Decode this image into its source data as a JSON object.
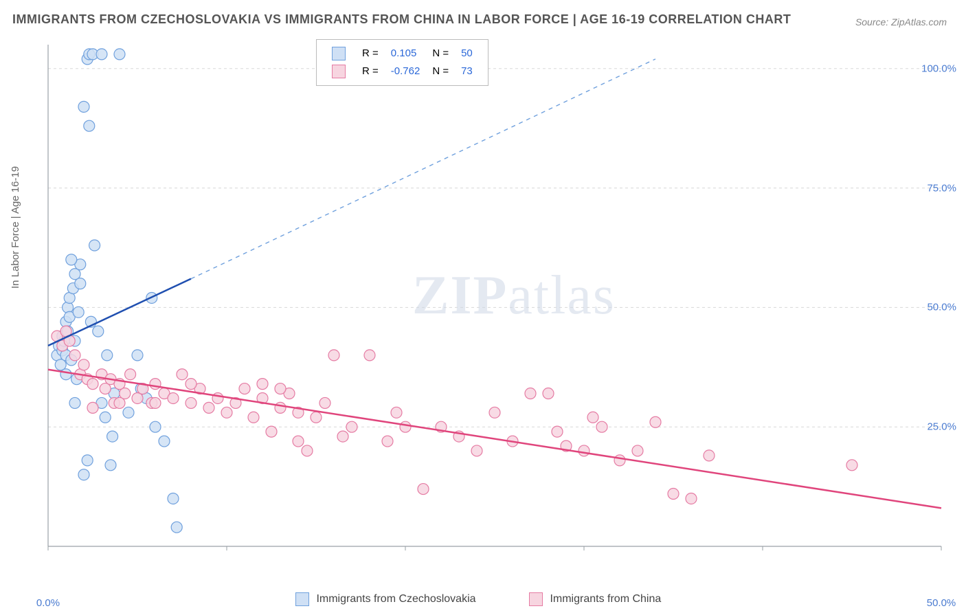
{
  "title": "IMMIGRANTS FROM CZECHOSLOVAKIA VS IMMIGRANTS FROM CHINA IN LABOR FORCE | AGE 16-19 CORRELATION CHART",
  "source": "Source: ZipAtlas.com",
  "ylabel": "In Labor Force | Age 16-19",
  "watermark": "ZIPatlas",
  "chart": {
    "type": "scatter-with-regression",
    "background_color": "#ffffff",
    "grid_color": "#d8d8d8",
    "axis_color": "#9aa0a6",
    "label_fontsize": 15,
    "title_fontsize": 18,
    "xlim": [
      0,
      50
    ],
    "ylim": [
      0,
      105
    ],
    "xticks": [
      0,
      10,
      20,
      30,
      40,
      50
    ],
    "yticks": [
      25,
      50,
      75,
      100
    ],
    "xtick_labels": [
      "0.0%",
      "",
      "",
      "",
      "",
      "50.0%"
    ],
    "ytick_labels": [
      "25.0%",
      "50.0%",
      "75.0%",
      "100.0%"
    ],
    "marker_radius": 8,
    "marker_stroke_width": 1.2,
    "series": [
      {
        "name": "Immigrants from Czechoslovakia",
        "color_fill": "#cfe0f5",
        "color_stroke": "#6fa0dd",
        "r_value": "0.105",
        "n_value": "50",
        "reg_line": {
          "x1": 0,
          "y1": 42,
          "x2": 8,
          "y2": 56,
          "solid_color": "#1f4fb0",
          "solid_width": 2.5
        },
        "reg_ext": {
          "x1": 8,
          "y1": 56,
          "x2": 34,
          "y2": 102,
          "dash_color": "#6fa0dd",
          "dash_width": 1.4
        },
        "points": [
          [
            0.5,
            40
          ],
          [
            0.6,
            42
          ],
          [
            0.7,
            38
          ],
          [
            0.8,
            41
          ],
          [
            0.8,
            44
          ],
          [
            0.9,
            43
          ],
          [
            1.0,
            40
          ],
          [
            1.0,
            47
          ],
          [
            1.0,
            36
          ],
          [
            1.1,
            45
          ],
          [
            1.1,
            50
          ],
          [
            1.2,
            48
          ],
          [
            1.2,
            52
          ],
          [
            1.3,
            39
          ],
          [
            1.4,
            54
          ],
          [
            1.5,
            57
          ],
          [
            1.5,
            43
          ],
          [
            1.6,
            35
          ],
          [
            1.8,
            55
          ],
          [
            1.8,
            59
          ],
          [
            2.0,
            92
          ],
          [
            2.2,
            102
          ],
          [
            2.3,
            88
          ],
          [
            2.3,
            103
          ],
          [
            2.5,
            103
          ],
          [
            2.6,
            63
          ],
          [
            2.8,
            45
          ],
          [
            3.0,
            30
          ],
          [
            3.0,
            103
          ],
          [
            3.2,
            27
          ],
          [
            3.5,
            17
          ],
          [
            3.6,
            23
          ],
          [
            3.7,
            32
          ],
          [
            4.0,
            103
          ],
          [
            4.5,
            28
          ],
          [
            5.0,
            40
          ],
          [
            5.2,
            33
          ],
          [
            5.5,
            31
          ],
          [
            5.8,
            52
          ],
          [
            6.0,
            25
          ],
          [
            6.5,
            22
          ],
          [
            7.0,
            10
          ],
          [
            7.2,
            4
          ],
          [
            2.0,
            15
          ],
          [
            2.2,
            18
          ],
          [
            1.5,
            30
          ],
          [
            1.3,
            60
          ],
          [
            1.7,
            49
          ],
          [
            2.4,
            47
          ],
          [
            3.3,
            40
          ]
        ]
      },
      {
        "name": "Immigrants from China",
        "color_fill": "#f7d5e0",
        "color_stroke": "#e57ba3",
        "r_value": "-0.762",
        "n_value": "73",
        "reg_line": {
          "x1": 0,
          "y1": 37,
          "x2": 50,
          "y2": 8,
          "solid_color": "#e0457c",
          "solid_width": 2.5
        },
        "points": [
          [
            0.5,
            44
          ],
          [
            0.8,
            42
          ],
          [
            1.0,
            45
          ],
          [
            1.2,
            43
          ],
          [
            1.5,
            40
          ],
          [
            1.8,
            36
          ],
          [
            2.0,
            38
          ],
          [
            2.2,
            35
          ],
          [
            2.5,
            34
          ],
          [
            3.0,
            36
          ],
          [
            3.2,
            33
          ],
          [
            3.5,
            35
          ],
          [
            3.7,
            30
          ],
          [
            4.0,
            34
          ],
          [
            4.3,
            32
          ],
          [
            4.6,
            36
          ],
          [
            5.0,
            31
          ],
          [
            5.3,
            33
          ],
          [
            5.8,
            30
          ],
          [
            6.0,
            34
          ],
          [
            6.5,
            32
          ],
          [
            7.0,
            31
          ],
          [
            7.5,
            36
          ],
          [
            8.0,
            30
          ],
          [
            8.5,
            33
          ],
          [
            9.0,
            29
          ],
          [
            9.5,
            31
          ],
          [
            10.0,
            28
          ],
          [
            10.5,
            30
          ],
          [
            11.0,
            33
          ],
          [
            11.5,
            27
          ],
          [
            12.0,
            31
          ],
          [
            12.5,
            24
          ],
          [
            13.0,
            29
          ],
          [
            13.5,
            32
          ],
          [
            14.0,
            22
          ],
          [
            14.5,
            20
          ],
          [
            15.0,
            27
          ],
          [
            15.5,
            30
          ],
          [
            16.0,
            40
          ],
          [
            16.5,
            23
          ],
          [
            17.0,
            25
          ],
          [
            18.0,
            40
          ],
          [
            19.0,
            22
          ],
          [
            19.5,
            28
          ],
          [
            20.0,
            25
          ],
          [
            21.0,
            12
          ],
          [
            22.0,
            25
          ],
          [
            23.0,
            23
          ],
          [
            24.0,
            20
          ],
          [
            25.0,
            28
          ],
          [
            26.0,
            22
          ],
          [
            27.0,
            32
          ],
          [
            28.0,
            32
          ],
          [
            28.5,
            24
          ],
          [
            29.0,
            21
          ],
          [
            30.0,
            20
          ],
          [
            30.5,
            27
          ],
          [
            31.0,
            25
          ],
          [
            32.0,
            18
          ],
          [
            33.0,
            20
          ],
          [
            34.0,
            26
          ],
          [
            35.0,
            11
          ],
          [
            36.0,
            10
          ],
          [
            37.0,
            19
          ],
          [
            12.0,
            34
          ],
          [
            13.0,
            33
          ],
          [
            14.0,
            28
          ],
          [
            8.0,
            34
          ],
          [
            6.0,
            30
          ],
          [
            4.0,
            30
          ],
          [
            45.0,
            17
          ],
          [
            2.5,
            29
          ]
        ]
      }
    ]
  },
  "stats_legend": {
    "r_label": "R =",
    "n_label": "N =",
    "value_color": "#2b68d8"
  },
  "bottom_legend": {
    "items": [
      "Immigrants from Czechoslovakia",
      "Immigrants from China"
    ]
  }
}
